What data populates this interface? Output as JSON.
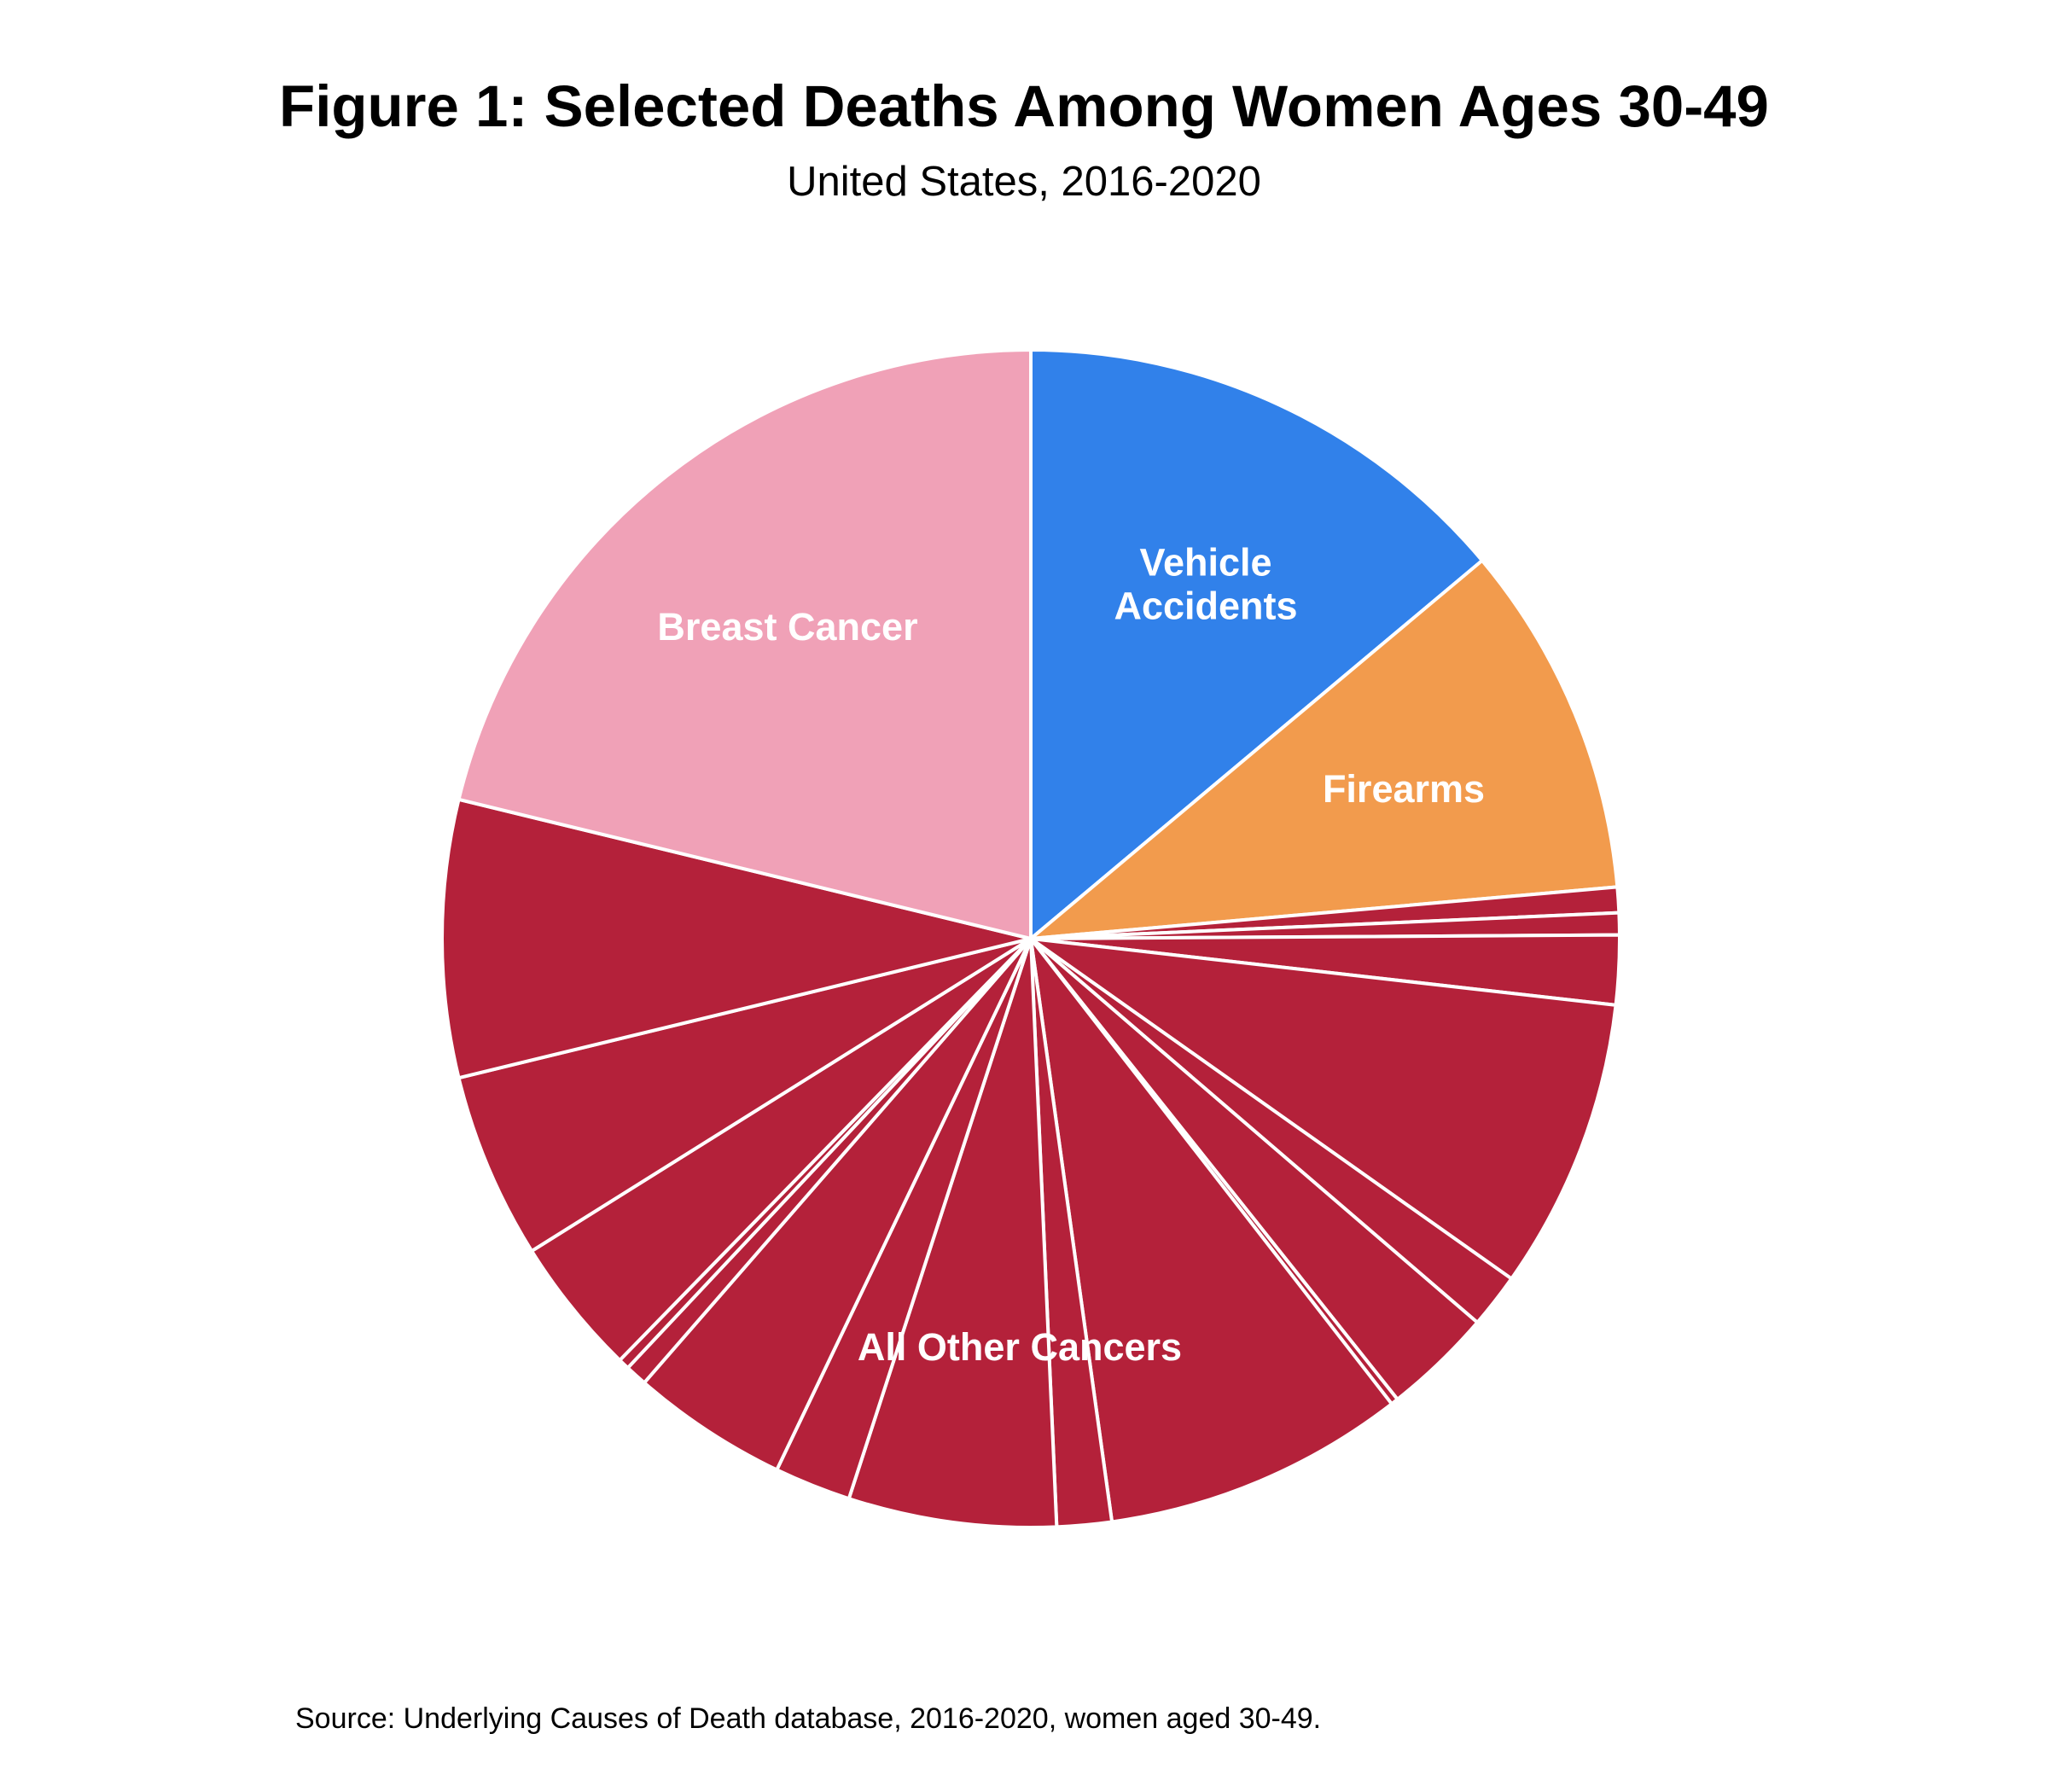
{
  "title": "Figure 1: Selected Deaths Among Women Ages 30-49",
  "subtitle": "United States, 2016-2020",
  "source": "Source: Underlying Causes of Death database, 2016-2020, women aged 30-49.",
  "chart_data": {
    "type": "pie",
    "start_angle_deg": 0,
    "direction": "clockwise",
    "colors": {
      "Vehicle Accidents": "#3181ea",
      "Firearms": "#f29b4d",
      "All Other Cancers": "#b4213a",
      "Breast Cancer": "#f0a1b7",
      "separator": "#ffffff"
    },
    "slices": [
      {
        "category": "Vehicle Accidents",
        "label": "Vehicle Accidents",
        "value": 13.9
      },
      {
        "category": "Firearms",
        "label": "Firearms",
        "value": 9.7
      },
      {
        "category": "All Other Cancers",
        "value": 0.7
      },
      {
        "category": "All Other Cancers",
        "value": 0.6
      },
      {
        "category": "All Other Cancers",
        "value": 1.9
      },
      {
        "category": "All Other Cancers",
        "value": 8.0
      },
      {
        "category": "All Other Cancers",
        "value": 1.5
      },
      {
        "category": "All Other Cancers",
        "value": 3.0
      },
      {
        "category": "All Other Cancers",
        "value": 0.2
      },
      {
        "category": "All Other Cancers",
        "value": 8.3
      },
      {
        "category": "All Other Cancers",
        "value": 1.5
      },
      {
        "category": "All Other Cancers",
        "value": 5.7
      },
      {
        "category": "All Other Cancers",
        "value": 2.1
      },
      {
        "category": "All Other Cancers",
        "value": 4.3
      },
      {
        "category": "All Other Cancers",
        "value": 0.6
      },
      {
        "category": "All Other Cancers",
        "value": 0.3
      },
      {
        "category": "All Other Cancers",
        "value": 3.8
      },
      {
        "category": "All Other Cancers",
        "value": 5.1
      },
      {
        "category": "All Other Cancers",
        "value": 7.6
      },
      {
        "category": "Breast Cancer",
        "label": "Breast Cancer",
        "value": 21.2
      }
    ],
    "labels": [
      {
        "text": [
          "Vehicle",
          "Accidents"
        ],
        "category": "Vehicle Accidents"
      },
      {
        "text": [
          "Firearms"
        ],
        "category": "Firearms"
      },
      {
        "text": [
          "All Other Cancers"
        ],
        "category": "All Other Cancers"
      },
      {
        "text": [
          "Breast Cancer"
        ],
        "category": "Breast Cancer"
      }
    ]
  }
}
